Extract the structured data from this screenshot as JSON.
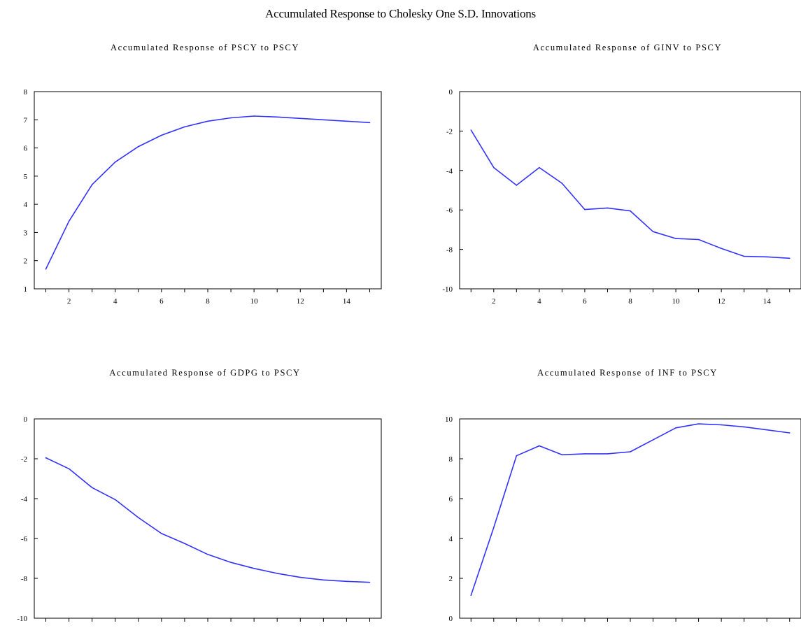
{
  "figure": {
    "title": "Accumulated Response to Cholesky One S.D. Innovations"
  },
  "colors": {
    "line": "#3333ff",
    "axis": "#000000"
  },
  "chart_data": [
    {
      "type": "line",
      "title": "Accumulated Response of PSCY to PSCY",
      "xlabel": "",
      "ylabel": "",
      "x": [
        1,
        2,
        3,
        4,
        5,
        6,
        7,
        8,
        9,
        10,
        11,
        12,
        13,
        14,
        15
      ],
      "xlim": [
        0.5,
        15.5
      ],
      "ylim": [
        1,
        8
      ],
      "xticks": [
        2,
        4,
        6,
        8,
        10,
        12,
        14
      ],
      "yticks": [
        1,
        2,
        3,
        4,
        5,
        6,
        7,
        8
      ],
      "series": [
        {
          "values": [
            1.7,
            3.4,
            4.7,
            5.5,
            6.05,
            6.45,
            6.75,
            6.95,
            7.07,
            7.13,
            7.1,
            7.05,
            7.0,
            6.95,
            6.9
          ]
        }
      ]
    },
    {
      "type": "line",
      "title": "Accumulated Response of GINV to PSCY",
      "xlabel": "",
      "ylabel": "",
      "x": [
        1,
        2,
        3,
        4,
        5,
        6,
        7,
        8,
        9,
        10,
        11,
        12,
        13,
        14,
        15
      ],
      "xlim": [
        0.5,
        15.5
      ],
      "ylim": [
        -10,
        0
      ],
      "xticks": [
        2,
        4,
        6,
        8,
        10,
        12,
        14
      ],
      "yticks": [
        -10,
        -8,
        -6,
        -4,
        -2,
        0
      ],
      "series": [
        {
          "values": [
            -1.95,
            -3.85,
            -4.75,
            -3.85,
            -4.65,
            -5.98,
            -5.9,
            -6.05,
            -7.1,
            -7.45,
            -7.5,
            -7.95,
            -8.35,
            -8.38,
            -8.45
          ]
        }
      ]
    },
    {
      "type": "line",
      "title": "Accumulated Response of GDPG to PSCY",
      "xlabel": "",
      "ylabel": "",
      "x": [
        1,
        2,
        3,
        4,
        5,
        6,
        7,
        8,
        9,
        10,
        11,
        12,
        13,
        14,
        15
      ],
      "xlim": [
        0.5,
        15.5
      ],
      "ylim": [
        -10,
        0
      ],
      "xticks": [
        2,
        4,
        6,
        8,
        10,
        12,
        14
      ],
      "yticks": [
        -10,
        -8,
        -6,
        -4,
        -2,
        0
      ],
      "series": [
        {
          "values": [
            -1.95,
            -2.5,
            -3.45,
            -4.05,
            -4.95,
            -5.75,
            -6.25,
            -6.8,
            -7.2,
            -7.5,
            -7.75,
            -7.95,
            -8.08,
            -8.15,
            -8.2
          ]
        }
      ]
    },
    {
      "type": "line",
      "title": "Accumulated Response of INF to PSCY",
      "xlabel": "",
      "ylabel": "",
      "x": [
        1,
        2,
        3,
        4,
        5,
        6,
        7,
        8,
        9,
        10,
        11,
        12,
        13,
        14,
        15
      ],
      "xlim": [
        0.5,
        15.5
      ],
      "ylim": [
        0,
        10
      ],
      "xticks": [
        2,
        4,
        6,
        8,
        10,
        12,
        14
      ],
      "yticks": [
        0,
        2,
        4,
        6,
        8,
        10
      ],
      "series": [
        {
          "values": [
            1.15,
            4.55,
            8.15,
            8.65,
            8.2,
            8.25,
            8.25,
            8.35,
            8.95,
            9.55,
            9.75,
            9.7,
            9.6,
            9.45,
            9.3
          ]
        }
      ]
    }
  ]
}
